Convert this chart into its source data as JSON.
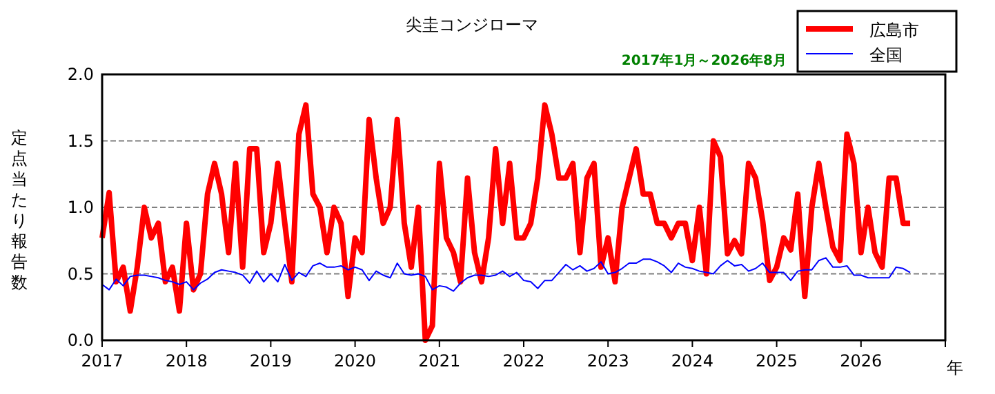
{
  "chart_data": {
    "type": "line",
    "title": "尖圭コンジローマ",
    "subtitle": "2017年1月～2026年8月",
    "xlabel": "年",
    "ylabel": "定点当たり報告数",
    "x": [
      "2017-01",
      "2017-02",
      "2017-03",
      "2017-04",
      "2017-05",
      "2017-06",
      "2017-07",
      "2017-08",
      "2017-09",
      "2017-10",
      "2017-11",
      "2017-12",
      "2018-01",
      "2018-02",
      "2018-03",
      "2018-04",
      "2018-05",
      "2018-06",
      "2018-07",
      "2018-08",
      "2018-09",
      "2018-10",
      "2018-11",
      "2018-12",
      "2019-01",
      "2019-02",
      "2019-03",
      "2019-04",
      "2019-05",
      "2019-06",
      "2019-07",
      "2019-08",
      "2019-09",
      "2019-10",
      "2019-11",
      "2019-12",
      "2020-01",
      "2020-02",
      "2020-03",
      "2020-04",
      "2020-05",
      "2020-06",
      "2020-07",
      "2020-08",
      "2020-09",
      "2020-10",
      "2020-11",
      "2020-12",
      "2021-01",
      "2021-02",
      "2021-03",
      "2021-04",
      "2021-05",
      "2021-06",
      "2021-07",
      "2021-08",
      "2021-09",
      "2021-10",
      "2021-11",
      "2021-12",
      "2022-01",
      "2022-02",
      "2022-03",
      "2022-04",
      "2022-05",
      "2022-06",
      "2022-07",
      "2022-08",
      "2022-09",
      "2022-10",
      "2022-11",
      "2022-12",
      "2023-01",
      "2023-02",
      "2023-03",
      "2023-04",
      "2023-05",
      "2023-06",
      "2023-07",
      "2023-08",
      "2023-09",
      "2023-10",
      "2023-11",
      "2023-12",
      "2024-01",
      "2024-02",
      "2024-03",
      "2024-04",
      "2024-05",
      "2024-06",
      "2024-07",
      "2024-08",
      "2024-09",
      "2024-10",
      "2024-11",
      "2024-12",
      "2025-01",
      "2025-02",
      "2025-03",
      "2025-04",
      "2025-05",
      "2025-06",
      "2025-07",
      "2025-08",
      "2025-09",
      "2025-10",
      "2025-11",
      "2025-12",
      "2026-01",
      "2026-02",
      "2026-03",
      "2026-04",
      "2026-05",
      "2026-06",
      "2026-07",
      "2026-08"
    ],
    "series": [
      {
        "name": "広島市",
        "color": "#ff0000",
        "values": [
          0.77,
          1.11,
          0.44,
          0.55,
          0.22,
          0.55,
          1.0,
          0.77,
          0.88,
          0.44,
          0.55,
          0.22,
          0.88,
          0.38,
          0.5,
          1.1,
          1.33,
          1.1,
          0.66,
          1.33,
          0.55,
          1.44,
          1.44,
          0.66,
          0.88,
          1.33,
          0.88,
          0.44,
          1.55,
          1.77,
          1.1,
          1.0,
          0.66,
          1.0,
          0.88,
          0.33,
          0.77,
          0.66,
          1.66,
          1.22,
          0.88,
          1.0,
          1.66,
          0.88,
          0.55,
          1.0,
          0.0,
          0.11,
          1.33,
          0.77,
          0.66,
          0.44,
          1.22,
          0.66,
          0.44,
          0.77,
          1.44,
          0.88,
          1.33,
          0.77,
          0.77,
          0.88,
          1.22,
          1.77,
          1.55,
          1.22,
          1.22,
          1.33,
          0.66,
          1.22,
          1.33,
          0.55,
          0.77,
          0.44,
          1.0,
          1.22,
          1.44,
          1.1,
          1.1,
          0.88,
          0.88,
          0.77,
          0.88,
          0.88,
          0.6,
          1.0,
          0.5,
          1.5,
          1.38,
          0.65,
          0.75,
          0.65,
          1.33,
          1.22,
          0.9,
          0.45,
          0.55,
          0.77,
          0.68,
          1.1,
          0.33,
          1.0,
          1.33,
          1.0,
          0.7,
          0.6,
          1.55,
          1.33,
          0.66,
          1.0,
          0.66,
          0.55,
          1.22,
          1.22,
          0.88,
          0.88
        ]
      },
      {
        "name": "全国",
        "color": "#0000ff",
        "values": [
          0.42,
          0.38,
          0.46,
          0.41,
          0.48,
          0.49,
          0.49,
          0.48,
          0.47,
          0.45,
          0.44,
          0.42,
          0.44,
          0.38,
          0.43,
          0.46,
          0.51,
          0.53,
          0.52,
          0.51,
          0.49,
          0.43,
          0.52,
          0.44,
          0.5,
          0.44,
          0.57,
          0.45,
          0.51,
          0.48,
          0.56,
          0.58,
          0.55,
          0.55,
          0.56,
          0.53,
          0.55,
          0.53,
          0.45,
          0.52,
          0.49,
          0.47,
          0.58,
          0.5,
          0.49,
          0.5,
          0.48,
          0.38,
          0.41,
          0.4,
          0.37,
          0.43,
          0.47,
          0.49,
          0.49,
          0.48,
          0.49,
          0.52,
          0.48,
          0.51,
          0.45,
          0.44,
          0.39,
          0.45,
          0.45,
          0.51,
          0.57,
          0.53,
          0.56,
          0.52,
          0.54,
          0.59,
          0.5,
          0.51,
          0.54,
          0.58,
          0.58,
          0.61,
          0.61,
          0.59,
          0.56,
          0.51,
          0.58,
          0.55,
          0.54,
          0.52,
          0.51,
          0.5,
          0.56,
          0.6,
          0.56,
          0.57,
          0.52,
          0.54,
          0.58,
          0.51,
          0.51,
          0.51,
          0.45,
          0.52,
          0.53,
          0.53,
          0.6,
          0.62,
          0.55,
          0.55,
          0.56,
          0.49,
          0.49,
          0.47,
          0.47,
          0.47,
          0.47,
          0.55,
          0.54,
          0.51
        ]
      }
    ],
    "xlim": [
      "2017-01",
      "2027-01"
    ],
    "xticks": [
      "2017",
      "2018",
      "2019",
      "2020",
      "2021",
      "2022",
      "2023",
      "2024",
      "2025",
      "2026"
    ],
    "ylim": [
      0,
      2
    ],
    "yticks": [
      {
        "value": 0,
        "label": "0.0"
      },
      {
        "value": 0.5,
        "label": "0.5"
      },
      {
        "value": 1,
        "label": "1.0"
      },
      {
        "value": 1.5,
        "label": "1.5"
      },
      {
        "value": 2,
        "label": "2.0"
      }
    ],
    "grid": "y",
    "legend": "top right",
    "line_style": "solid",
    "marker": "none"
  }
}
